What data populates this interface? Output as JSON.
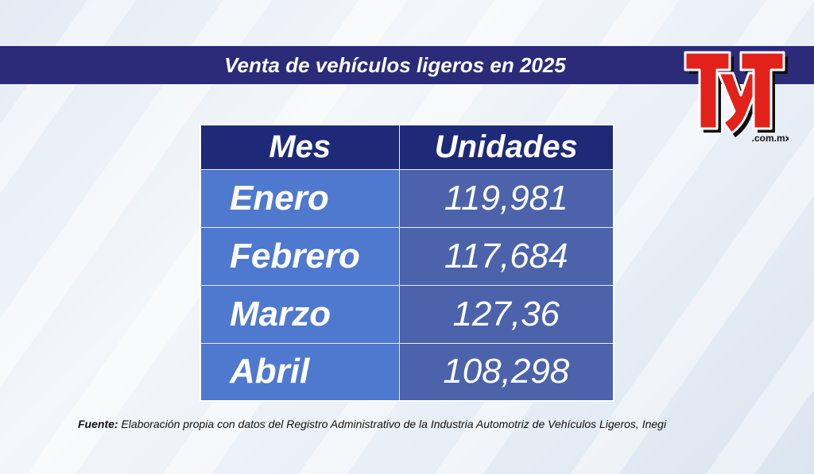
{
  "title": "Venta de vehículos ligeros en 2025",
  "logo": {
    "text": "TyT",
    "domain": ".com.mx",
    "colors": {
      "red": "#e3211b",
      "black": "#111111"
    }
  },
  "chart_data": {
    "type": "table",
    "title": "Venta de vehículos ligeros en 2025",
    "columns": [
      "Mes",
      "Unidades"
    ],
    "rows": [
      {
        "month": "Enero",
        "units": "119,981"
      },
      {
        "month": "Febrero",
        "units": "117,684"
      },
      {
        "month": "Marzo",
        "units": "127,36"
      },
      {
        "month": "Abril",
        "units": "108,298"
      }
    ]
  },
  "source": {
    "label": "Fuente:",
    "text": "Elaboración propia con datos del Registro Administrativo de la Industria Automotriz de Vehículos Ligeros, Inegi"
  },
  "colors": {
    "title_bar": "#2b2b7a",
    "header": "#1e2a78",
    "month_cell": "#4f79cf",
    "units_cell": "#4c63ab"
  }
}
